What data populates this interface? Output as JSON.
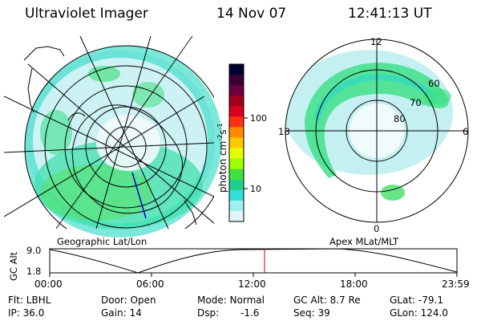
{
  "header": {
    "title": "Ultraviolet Imager",
    "date": "14 Nov 07",
    "time": "12:41:13 UT"
  },
  "geo_panel": {
    "caption": "Geographic Lat/Lon"
  },
  "apex_panel": {
    "caption": "Apex MLat/MLT",
    "mlt_labels": {
      "top": "12",
      "left": "18",
      "right": "6",
      "bottom": "0"
    },
    "mlat_labels": [
      "60",
      "70",
      "80"
    ]
  },
  "colorbar": {
    "unit_label_main": "photon cm",
    "unit_sup1": "-2",
    "unit_mid": "s",
    "unit_sup2": "-1",
    "ticks": [
      "100",
      "10"
    ],
    "colors": [
      "#000033",
      "#3a0033",
      "#6a0040",
      "#a00020",
      "#d8001c",
      "#ff3010",
      "#ff8a00",
      "#ffc800",
      "#e6ff00",
      "#9cff00",
      "#40e040",
      "#20d08a",
      "#30e0d8",
      "#9ff0f0",
      "#e0f6f8"
    ]
  },
  "timeline": {
    "axis_label": "GC Alt",
    "y_ticks": [
      "9.0",
      "1.8"
    ],
    "x_ticks": [
      "00:00",
      "06:00",
      "12:00",
      "18:00",
      "23:59"
    ],
    "marker_color": "#cc0000"
  },
  "info": {
    "row1": [
      "Flt: LBHL",
      "Door: Open",
      "Mode: Normal",
      "GC Alt: 8.7 Re",
      "GLat: -79.1"
    ],
    "row2": [
      "IP: 36.0",
      "Gain: 14",
      "Dsp:",
      "-1.6",
      "Seq: 39",
      "GLon: 124.0"
    ]
  }
}
